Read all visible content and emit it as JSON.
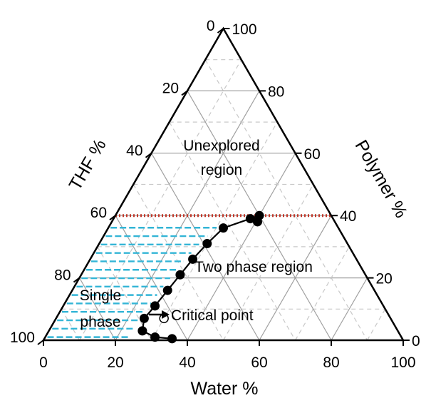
{
  "chart_data": {
    "type": "ternary",
    "axes": {
      "bottom": {
        "title": "Water %",
        "ticks": [
          "0",
          "20",
          "40",
          "60",
          "80",
          "100"
        ]
      },
      "left": {
        "title": "THF %",
        "ticks": [
          "0",
          "20",
          "40",
          "60",
          "80",
          "100"
        ]
      },
      "right": {
        "title": "Polymer %",
        "ticks": [
          "100",
          "80",
          "60",
          "40",
          "20",
          "0"
        ]
      }
    },
    "grid_step": 10,
    "binodal_points": [
      {
        "water": 26,
        "polymer": 3
      },
      {
        "water": 30.5,
        "polymer": 1
      },
      {
        "water": 35.5,
        "polymer": 0.5
      },
      {
        "water": 24.5,
        "polymer": 7
      },
      {
        "water": 25.5,
        "polymer": 11
      },
      {
        "water": 26.5,
        "polymer": 16
      },
      {
        "water": 27.5,
        "polymer": 21
      },
      {
        "water": 28.5,
        "polymer": 26
      },
      {
        "water": 30,
        "polymer": 31
      },
      {
        "water": 32,
        "polymer": 36
      },
      {
        "water": 38,
        "polymer": 39
      },
      {
        "water": 40,
        "polymer": 40
      },
      {
        "water": 40.5,
        "polymer": 38
      }
    ],
    "critical_point": {
      "water": 30,
      "polymer": 7
    },
    "polymer_threshold_line": 40,
    "annotations": {
      "unexplored": [
        "Unexplored",
        "region"
      ],
      "two_phase": "Two phase region",
      "single_phase": [
        "Single",
        "phase"
      ],
      "critical": "Critical point"
    },
    "colors": {
      "threshold_line": "#c0392b",
      "single_phase_hatch": "#33b5d6",
      "grid_solid": "#a0a0a0",
      "grid_dashed": "#c8c8c8"
    }
  }
}
